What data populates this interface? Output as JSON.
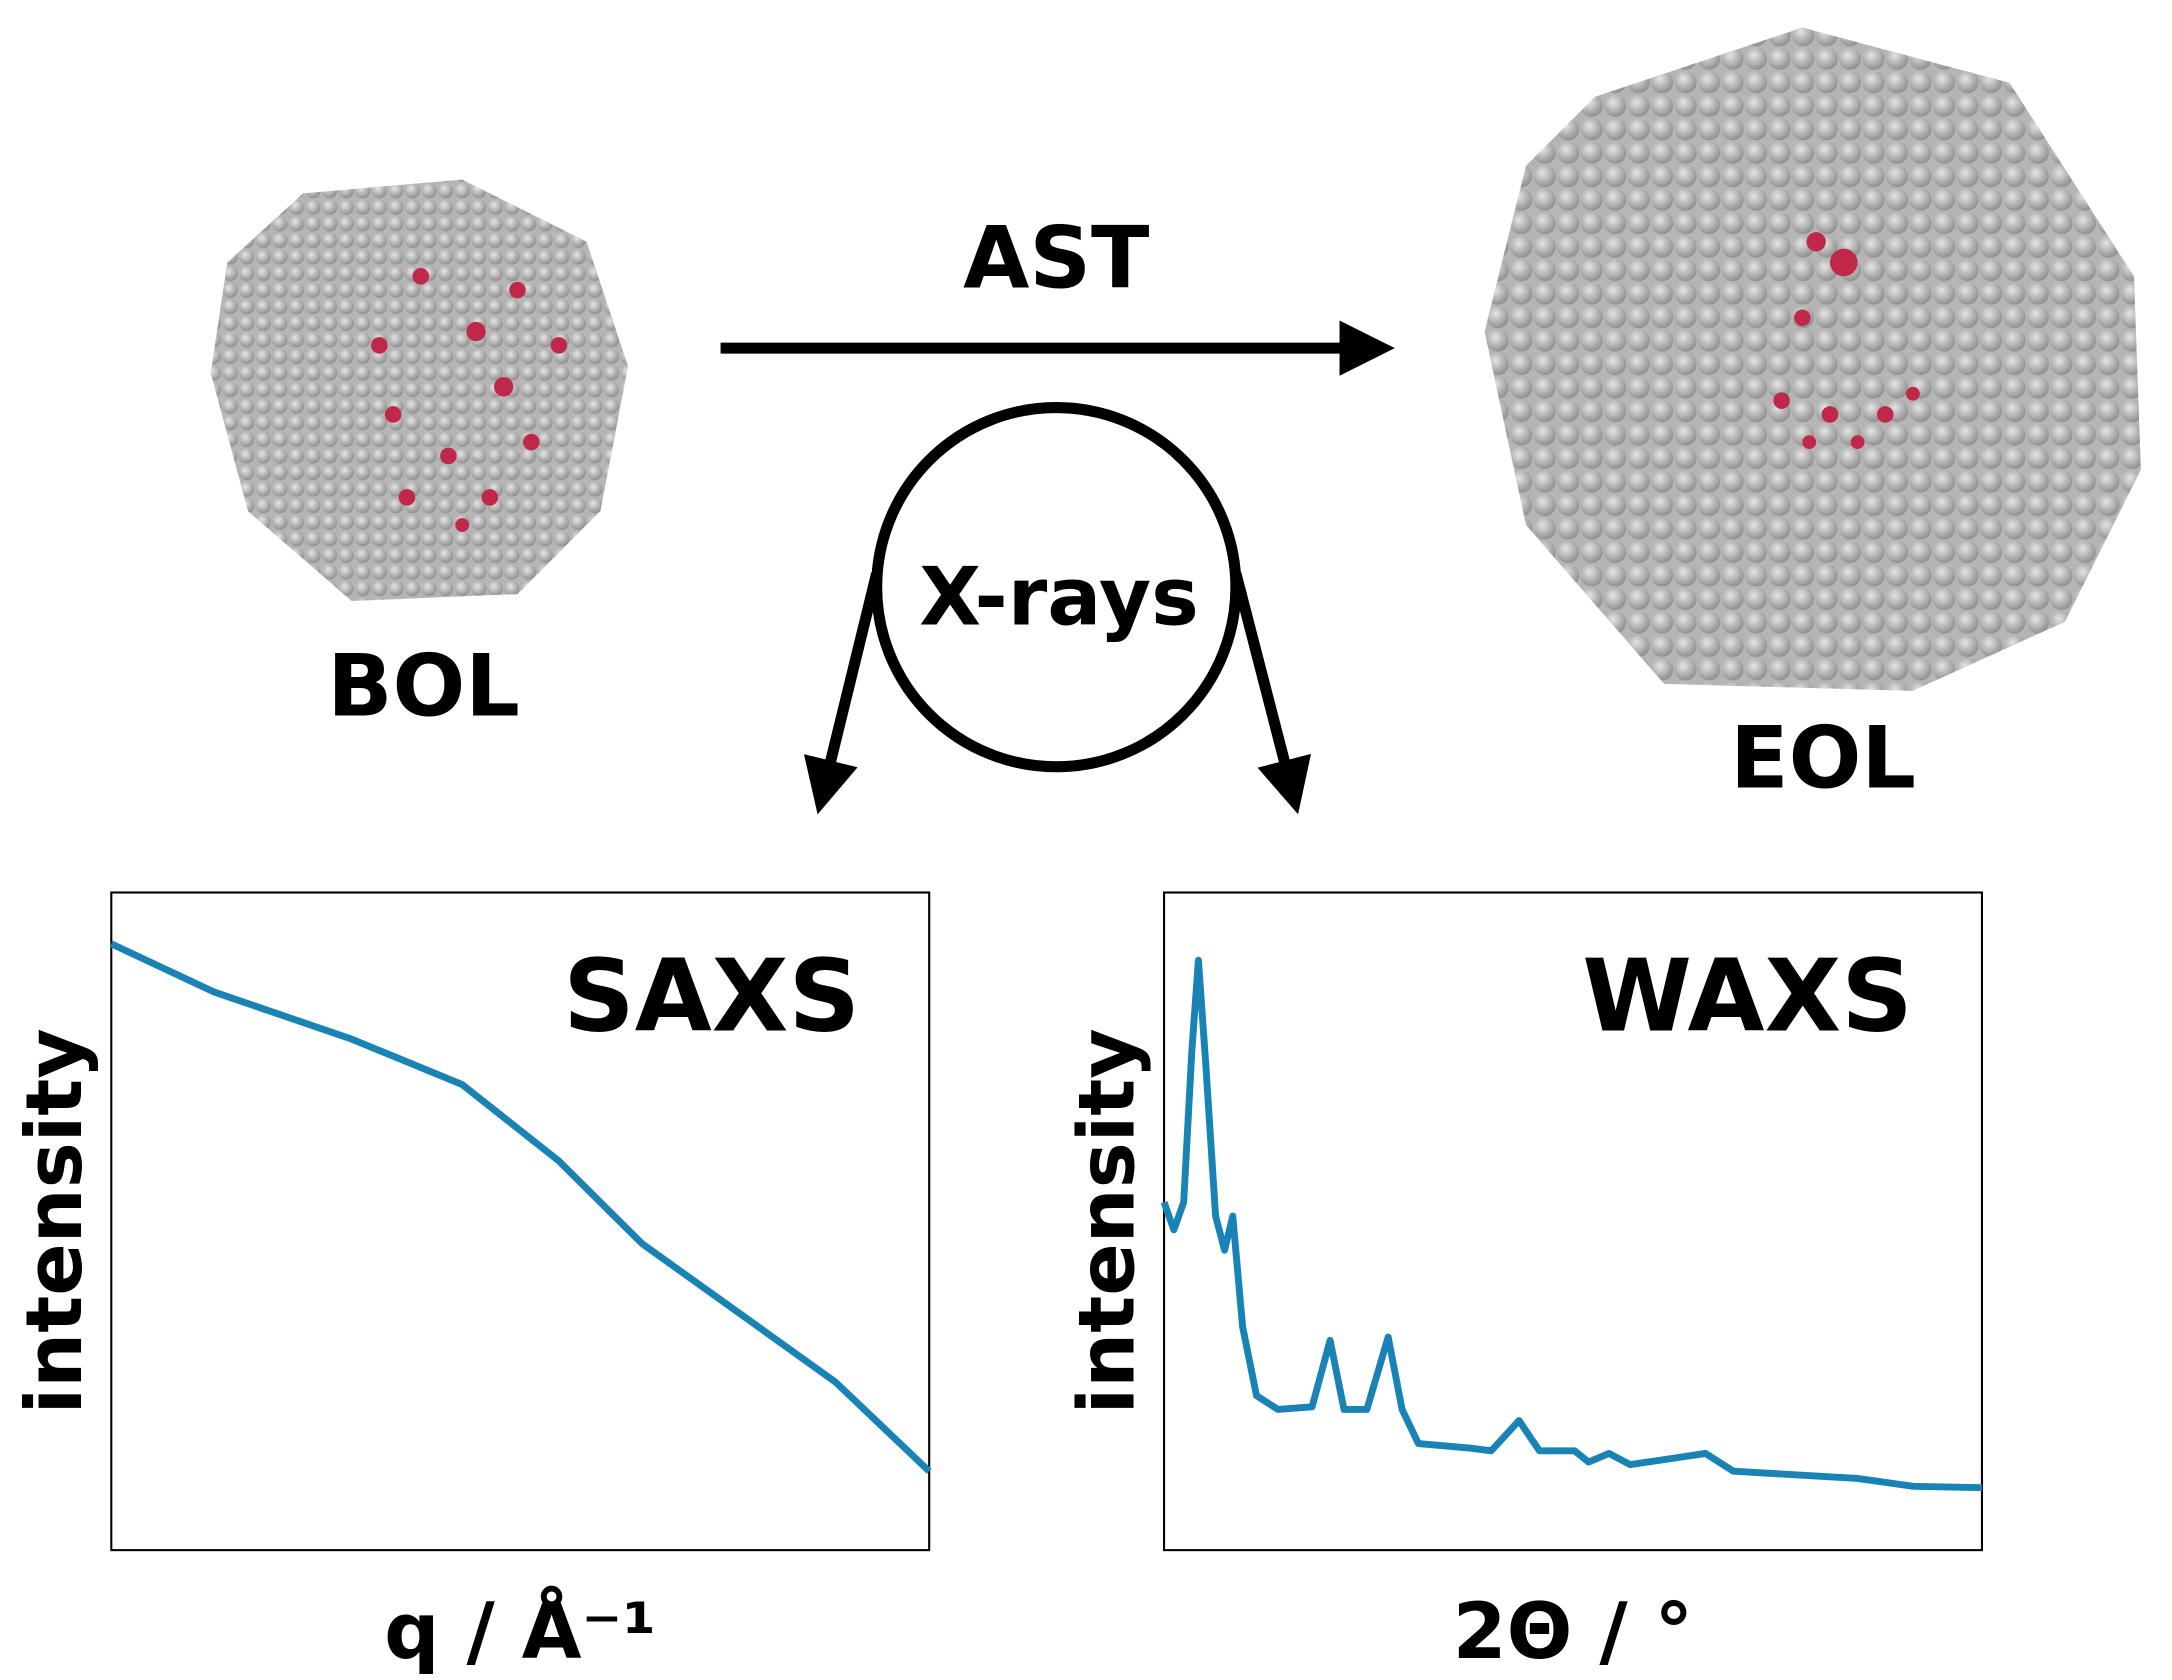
{
  "labels": {
    "bol": "BOL",
    "eol": "EOL",
    "ast": "AST",
    "xrays": "X-rays"
  },
  "chart_data": [
    {
      "type": "line",
      "title": "SAXS",
      "x_label": "q / Å⁻¹",
      "y_label": "intensity",
      "xlim": [
        0,
        100
      ],
      "ylim": [
        0,
        100
      ],
      "x": [
        0,
        12.5,
        29.4,
        42.9,
        54.7,
        64.9,
        76.7,
        88.5,
        100
      ],
      "series": [
        {
          "color": "#1a83b5",
          "values": [
            92.2,
            84.9,
            77.7,
            70.8,
            59.2,
            46.6,
            36.1,
            25.6,
            12
          ]
        }
      ]
    },
    {
      "type": "line",
      "title": "WAXS",
      "x_label": "2Θ / °",
      "y_label": "intensity",
      "xlim": [
        0,
        100
      ],
      "ylim": [
        0,
        100
      ],
      "x": [
        0,
        1.2,
        2.4,
        3.4,
        4.2,
        5.1,
        6.3,
        7.4,
        8.4,
        9.6,
        11.3,
        13.9,
        18.1,
        20.3,
        22,
        24.8,
        27.4,
        29.1,
        31.1,
        37.5,
        40,
        43.4,
        45.9,
        50.2,
        51.9,
        54.4,
        57,
        66.2,
        69.6,
        84.8,
        91.6,
        100
      ],
      "series": [
        {
          "color": "#1a83b5",
          "values": [
            52.9,
            48.7,
            52.9,
            76,
            89.7,
            73.9,
            50.8,
            45.6,
            50.8,
            34,
            23.5,
            21.4,
            21.8,
            31.9,
            21.4,
            21.4,
            32.4,
            21.4,
            16.2,
            15.5,
            15.1,
            19.7,
            15.1,
            15.1,
            13.4,
            14.7,
            13,
            14.7,
            12,
            10.9,
            9.7,
            9.5
          ]
        }
      ]
    }
  ]
}
